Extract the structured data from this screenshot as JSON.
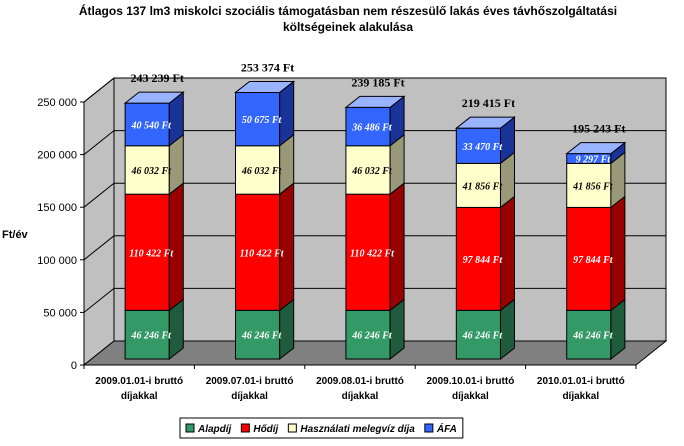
{
  "chart_data": {
    "type": "bar",
    "stacked": true,
    "three_d": true,
    "title_lines": [
      "Átlagos 137 lm3 miskolci szociális támogatásban nem részesülő lakás éves távhőszolgáltatási",
      "költségeinek alakulása"
    ],
    "ylabel": "Ft/év",
    "xlabel": "",
    "ylim": [
      0,
      250000
    ],
    "yticks": [
      0,
      50000,
      100000,
      150000,
      200000,
      250000
    ],
    "ytick_labels": [
      "0",
      "50 000",
      "100 000",
      "150 000",
      "200 000",
      "250 000"
    ],
    "grid": true,
    "legend_position": "bottom",
    "categories": [
      [
        "2009.01.01-i bruttó",
        "díjakkal"
      ],
      [
        "2009.07.01-i bruttó",
        "díjakkal"
      ],
      [
        "2009.08.01-i bruttó",
        "díjakkal"
      ],
      [
        "2009.10.01-i bruttó",
        "díjakkal"
      ],
      [
        "2010.01.01-i bruttó",
        "díjakkal"
      ]
    ],
    "series": [
      {
        "name": "Alapdíj",
        "values": [
          46246,
          46246,
          46246,
          46246,
          46246
        ],
        "labels": [
          "46 246 Ft",
          "46 246 Ft",
          "46 246 Ft",
          "46 246 Ft",
          "46 246 Ft"
        ],
        "color": "#339966",
        "side": "#1f5c3d",
        "top": "#5fb88a",
        "label_color": "#ffffff"
      },
      {
        "name": "Hődíj",
        "values": [
          110422,
          110422,
          110422,
          97844,
          97844
        ],
        "labels": [
          "110 422 Ft",
          "110 422 Ft",
          "110 422 Ft",
          "97 844 Ft",
          "97 844 Ft"
        ],
        "color": "#ff0000",
        "side": "#990000",
        "top": "#ff6666",
        "label_color": "#ffffff"
      },
      {
        "name": "Használati melegvíz díja",
        "values": [
          46032,
          46032,
          46032,
          41856,
          41856
        ],
        "labels": [
          "46 032 Ft",
          "46 032 Ft",
          "46 032 Ft",
          "41 856 Ft",
          "41 856 Ft"
        ],
        "color": "#ffffcc",
        "side": "#99997a",
        "top": "#ffffe6",
        "label_color": "#000000"
      },
      {
        "name": "ÁFA",
        "values": [
          40540,
          50675,
          36486,
          33470,
          9297
        ],
        "labels": [
          "40 540 Ft",
          "50 675 Ft",
          "36 486 Ft",
          "33 470 Ft",
          "9 297 Ft"
        ],
        "color": "#3366ff",
        "side": "#1a3399",
        "top": "#99b3ff",
        "label_color": "#ffffff"
      }
    ],
    "totals": [
      "243 239 Ft",
      "253 374 Ft",
      "239 185 Ft",
      "219 415 Ft",
      "195 243 Ft"
    ],
    "colors": {
      "wall": "#c0c0c0",
      "floor": "#808080",
      "floor_side": "#000000",
      "grid": "#000000"
    }
  }
}
